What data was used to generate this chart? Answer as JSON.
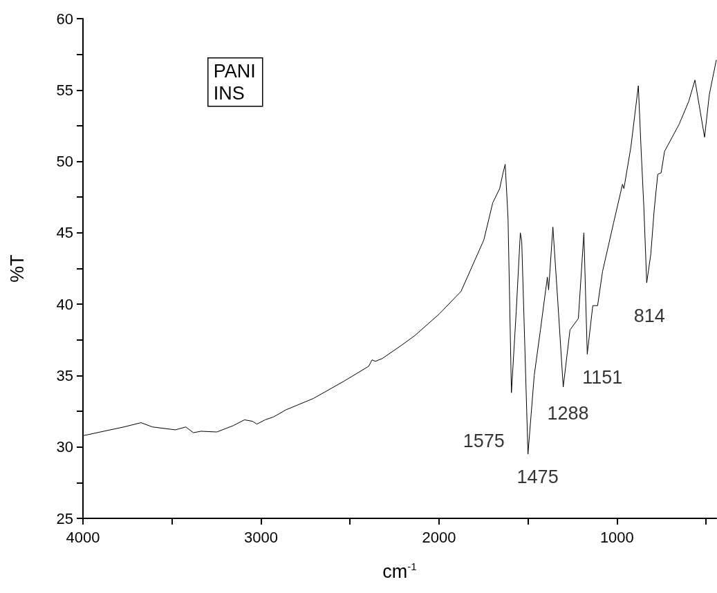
{
  "chart_data": {
    "type": "line",
    "xlabel": "cm$^{-1}$",
    "ylabel": "%T",
    "color": "#000000",
    "x": [
      3996,
      3771,
      3674,
      3609,
      3481,
      3422,
      3380,
      3337,
      3248,
      3155,
      3093,
      3047,
      3023,
      2977,
      2930,
      2860,
      2705,
      2535,
      2395,
      2376,
      2357,
      2318,
      2213,
      2136,
      2000,
      1876,
      1748,
      1698,
      1659,
      1640,
      1628,
      1612,
      1593,
      1566,
      1543,
      1535,
      1500,
      1465,
      1430,
      1391,
      1384,
      1360,
      1333,
      1302,
      1264,
      1217,
      1186,
      1167,
      1136,
      1109,
      1081,
      1019,
      969,
      961,
      922,
      880,
      864,
      849,
      833,
      810,
      791,
      771,
      752,
      733,
      651,
      597,
      562,
      535,
      508,
      481,
      442
    ],
    "values": [
      30.8,
      31.4,
      31.7,
      31.4,
      31.2,
      31.4,
      31.0,
      31.1,
      31.05,
      31.5,
      31.9,
      31.8,
      31.6,
      31.9,
      32.1,
      32.6,
      33.4,
      34.6,
      35.65,
      36.1,
      36.0,
      36.2,
      37.1,
      37.8,
      39.3,
      40.9,
      44.5,
      47.1,
      48.1,
      49.2,
      49.8,
      46.0,
      33.8,
      39.5,
      45.0,
      44.4,
      29.5,
      35.0,
      38.2,
      41.9,
      41.0,
      45.4,
      40.3,
      34.2,
      38.2,
      39.0,
      45.0,
      36.5,
      39.9,
      39.9,
      42.3,
      45.7,
      48.4,
      48.1,
      51.0,
      55.3,
      50.7,
      46.8,
      41.5,
      43.5,
      46.6,
      49.1,
      49.2,
      50.7,
      52.6,
      54.2,
      55.7,
      53.7,
      51.7,
      54.7,
      57.1
    ],
    "xlim": [
      4000,
      442
    ],
    "xticks": [
      4000,
      {
        "value": 3500,
        "label": null
      },
      3000,
      {
        "value": 2500,
        "label": null
      },
      2000,
      {
        "value": 1500,
        "label": null
      },
      1000,
      {
        "value": 500,
        "label": null
      }
    ],
    "ylim": [
      25,
      60
    ],
    "yticks": [
      25,
      {
        "value": 27.5,
        "label": null
      },
      30,
      {
        "value": 32.5,
        "label": null
      },
      35,
      {
        "value": 37.5,
        "label": null
      },
      40,
      {
        "value": 42.5,
        "label": null
      },
      45,
      {
        "value": 47.5,
        "label": null
      },
      50,
      {
        "value": 52.5,
        "label": null
      },
      55,
      {
        "value": 57.5,
        "label": null
      },
      60
    ],
    "grid": false,
    "marker": "none",
    "line_style": "solid",
    "annotations": [
      "PANI\nINS",
      {
        "text": "1575",
        "x": 1593,
        "y": 33.8
      },
      {
        "text": "1475",
        "x": 1500,
        "y": 29.5
      },
      {
        "text": "1288",
        "x": 1302,
        "y": 34.2
      },
      {
        "text": "1151",
        "x": 1167,
        "y": 36.5
      },
      {
        "text": "814",
        "x": 833,
        "y": 41.5
      }
    ]
  }
}
